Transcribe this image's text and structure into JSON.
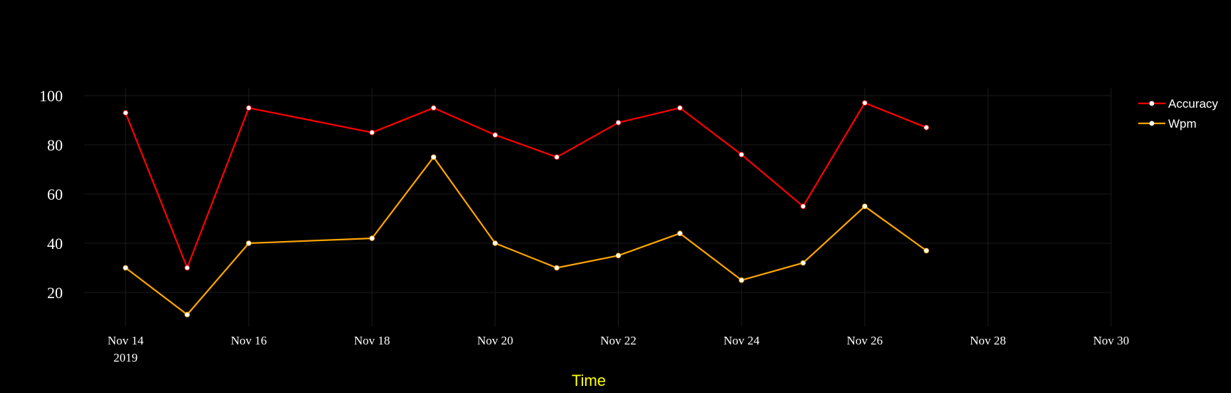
{
  "chart_data": {
    "type": "line",
    "xlabel": "Time",
    "ylabel": "",
    "x_start": "2019-11-14",
    "x_end": "2019-11-30",
    "ylim": [
      4,
      112
    ],
    "grid": true,
    "legend_position": "top-right",
    "background_color": "#000000",
    "grid_color": "#1a1a1a",
    "marker_color": "#ffffff",
    "xlabel_color": "#ffff00",
    "x_ticks": [
      {
        "date": "2019-11-14",
        "label": "Nov 14",
        "sublabel": "2019"
      },
      {
        "date": "2019-11-16",
        "label": "Nov 16"
      },
      {
        "date": "2019-11-18",
        "label": "Nov 18"
      },
      {
        "date": "2019-11-20",
        "label": "Nov 20"
      },
      {
        "date": "2019-11-22",
        "label": "Nov 22"
      },
      {
        "date": "2019-11-24",
        "label": "Nov 24"
      },
      {
        "date": "2019-11-26",
        "label": "Nov 26"
      },
      {
        "date": "2019-11-28",
        "label": "Nov 28"
      },
      {
        "date": "2019-11-30",
        "label": "Nov 30"
      }
    ],
    "y_ticks": [
      {
        "value": 20,
        "label": "20"
      },
      {
        "value": 40,
        "label": "40"
      },
      {
        "value": 60,
        "label": "60"
      },
      {
        "value": 80,
        "label": "80"
      },
      {
        "value": 100,
        "label": "100"
      }
    ],
    "x": [
      "2019-11-14",
      "2019-11-15",
      "2019-11-16",
      "2019-11-18",
      "2019-11-19",
      "2019-11-20",
      "2019-11-21",
      "2019-11-22",
      "2019-11-23",
      "2019-11-24",
      "2019-11-25",
      "2019-11-26",
      "2019-11-27"
    ],
    "series": [
      {
        "name": "Accuracy",
        "color": "#ff0000",
        "values": [
          93,
          30,
          95,
          85,
          95,
          84,
          75,
          89,
          95,
          76,
          55,
          97,
          87
        ]
      },
      {
        "name": "Wpm",
        "color": "#ffa500",
        "values": [
          30,
          11,
          40,
          42,
          75,
          40,
          30,
          35,
          44,
          25,
          32,
          55,
          37
        ]
      }
    ]
  }
}
